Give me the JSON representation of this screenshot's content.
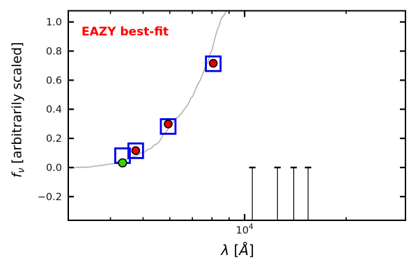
{
  "figure": {
    "annotation": {
      "text": "EAZY best-fit",
      "color": "#ff0000"
    }
  },
  "axes": {
    "ylabel": {
      "symbol": "f",
      "subscript": "ν",
      "rest": " [arbitrarily scaled]"
    },
    "xlabel": {
      "symbol": "λ",
      "open_bracket": " [",
      "unit": "Å",
      "close_bracket": "]"
    }
  },
  "chart_data": {
    "type": "line",
    "title": "EAZY best-fit",
    "xlabel": "lambda [Angstrom]",
    "ylabel": "f_nu [arbitrarily scaled]",
    "xscale": "log",
    "xlim": [
      3000,
      30000
    ],
    "ylim": [
      -0.363,
      1.077
    ],
    "grid": false,
    "legend": null,
    "x_major_ticks": [
      {
        "value": 10000,
        "base": "10",
        "exponent": "4"
      }
    ],
    "x_minor_tick_values": [
      4000,
      5000,
      6000,
      7000,
      8000,
      9000,
      20000
    ],
    "y_ticks": [
      1.0,
      0.8,
      0.6,
      0.4,
      0.2,
      0.0,
      -0.2
    ],
    "y_tick_labels": [
      "1.0",
      "0.8",
      "0.6",
      "0.4",
      "0.2",
      "0.0",
      "−0.2"
    ],
    "series": [
      {
        "name": "model-spectrum",
        "type": "line",
        "color": "#b2b2b2",
        "line_width": 1.6,
        "lambda": [
          3000,
          3180,
          3340,
          3500,
          3670,
          3850,
          4000,
          4140,
          4240,
          4340,
          4440,
          4570,
          4710,
          4840,
          5000,
          5170,
          5320,
          5490,
          5640,
          5800,
          5960,
          6120,
          6290,
          6490,
          6670,
          6860,
          7080,
          7310,
          7550,
          7790,
          8010,
          8200,
          8390,
          8570,
          8760,
          8940
        ],
        "flux": [
          -0.002,
          0.0,
          0.002,
          0.005,
          0.012,
          0.017,
          0.024,
          0.033,
          0.041,
          0.048,
          0.055,
          0.064,
          0.079,
          0.088,
          0.105,
          0.119,
          0.138,
          0.16,
          0.196,
          0.234,
          0.267,
          0.31,
          0.339,
          0.372,
          0.406,
          0.453,
          0.511,
          0.578,
          0.654,
          0.73,
          0.816,
          0.902,
          0.978,
          1.031,
          1.064,
          1.09
        ]
      },
      {
        "name": "model-photometry",
        "type": "scatter",
        "marker": "open-square",
        "edge_color": "#0000f2",
        "size": 21,
        "lambda": [
          4345,
          4755,
          5935,
          8075
        ],
        "flux": [
          0.081,
          0.115,
          0.282,
          0.713
        ]
      },
      {
        "name": "observed-photometry",
        "type": "scatter",
        "marker": "filled-circle",
        "fill_color": "#e80000",
        "edge_color": "#000000",
        "lambda": [
          4755,
          5935,
          8075
        ],
        "flux": [
          0.116,
          0.299,
          0.716
        ]
      },
      {
        "name": "faint-detection",
        "type": "scatter",
        "marker": "filled-circle",
        "fill_color": "#35d500",
        "edge_color": "#000000",
        "lambda": [
          4345
        ],
        "flux": [
          0.032
        ]
      },
      {
        "name": "upper-limits",
        "type": "errorbar",
        "color": "#000000",
        "lambda": [
          10545,
          12520,
          13985,
          15430
        ],
        "flux_top": [
          0.0,
          0.0,
          0.0,
          0.0
        ]
      }
    ]
  }
}
